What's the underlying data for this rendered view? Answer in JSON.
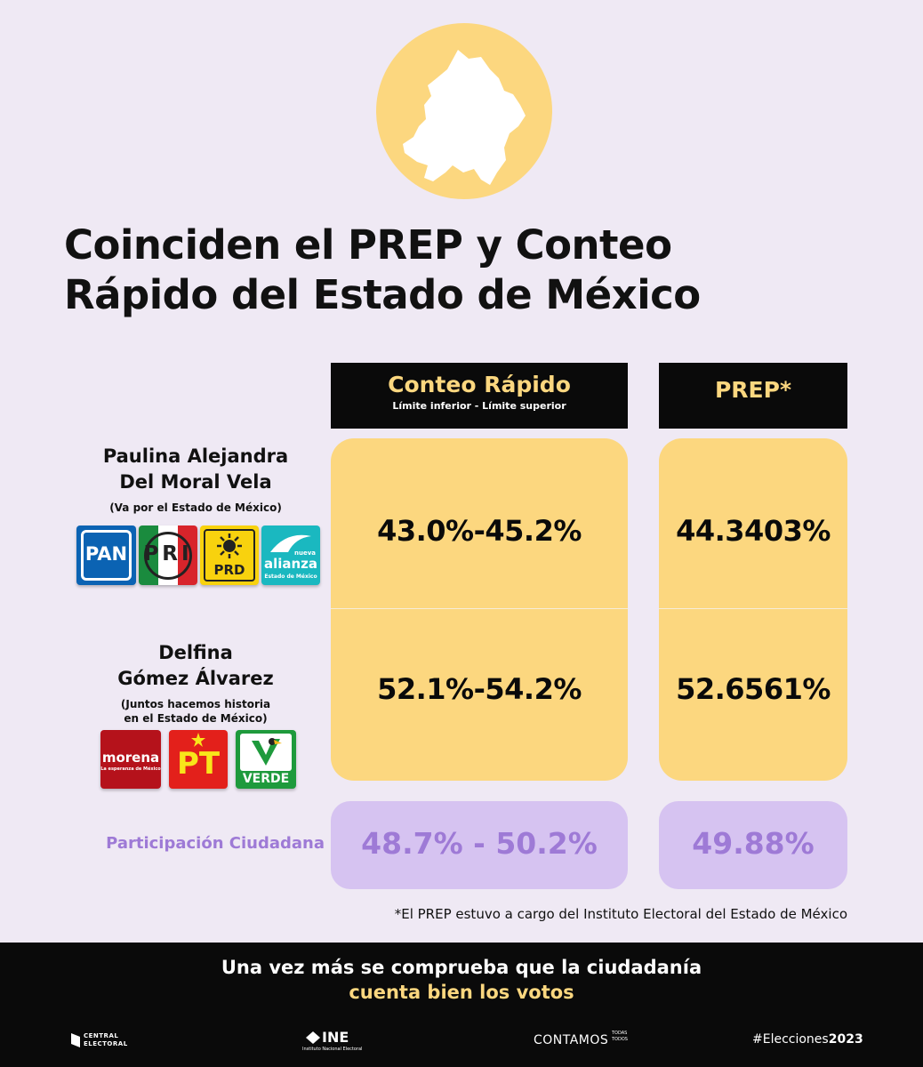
{
  "title": {
    "line1": "Coinciden el PREP y Conteo",
    "line2": "Rápido del Estado de México"
  },
  "headers": {
    "conteo_rapido": "Conteo Rápido",
    "conteo_rapido_sub": "Límite inferior - Límite superior",
    "prep": "PREP*"
  },
  "candidates": [
    {
      "name_line1": "Paulina Alejandra",
      "name_line2": "Del Moral Vela",
      "coalition_line1": "(Va por el Estado de México)",
      "coalition_line2": "",
      "conteo_rapido": "43.0%-45.2%",
      "prep": "44.3403%",
      "parties": [
        {
          "icon": "pan-logo",
          "label": "PAN",
          "color": "#0b63b3"
        },
        {
          "icon": "pri-logo",
          "label": "PRI",
          "color": "#d8242b"
        },
        {
          "icon": "prd-logo",
          "label": "PRD",
          "color": "#f8d20e"
        },
        {
          "icon": "nueva-alianza-logo",
          "label": "alianza",
          "sublabel": "nueva",
          "footer": "Estado de México",
          "color": "#1ab8c0"
        }
      ]
    },
    {
      "name_line1": "Delfina",
      "name_line2": "Gómez Álvarez",
      "coalition_line1": "(Juntos hacemos historia",
      "coalition_line2": "en el Estado de México)",
      "conteo_rapido": "52.1%-54.2%",
      "prep": "52.6561%",
      "parties": [
        {
          "icon": "morena-logo",
          "label": "morena",
          "sublabel": "La esperanza de México",
          "color": "#b5121b"
        },
        {
          "icon": "pt-logo",
          "label": "PT",
          "color": "#e3201b"
        },
        {
          "icon": "verde-logo",
          "label": "VERDE",
          "color": "#1e9a3c"
        }
      ]
    }
  ],
  "participation": {
    "label": "Participación Ciudadana",
    "conteo_rapido": "48.7% - 50.2%",
    "prep": "49.88%"
  },
  "footnote": "*El PREP estuvo a cargo del Instituto Electoral del Estado de México",
  "closing": {
    "line1": "Una vez más se comprueba que la ciudadanía",
    "line2": "cuenta bien los votos"
  },
  "footer": {
    "central_line1": "CENTRAL",
    "central_line2": "ELECTORAL",
    "ine": "INE",
    "ine_sub": "Instituto Nacional Electoral",
    "contamos": "CONTAMOS",
    "contamos_small1": "TODAS",
    "contamos_small2": "TODOS",
    "hashtag_prefix": "#Elecciones",
    "hashtag_year": "2023"
  },
  "colors": {
    "background": "#efe9f4",
    "accent_yellow": "#fcd77f",
    "accent_purple": "#d6c3f1",
    "text_purple": "#9e7ad6",
    "dark": "#0a0a0a"
  }
}
